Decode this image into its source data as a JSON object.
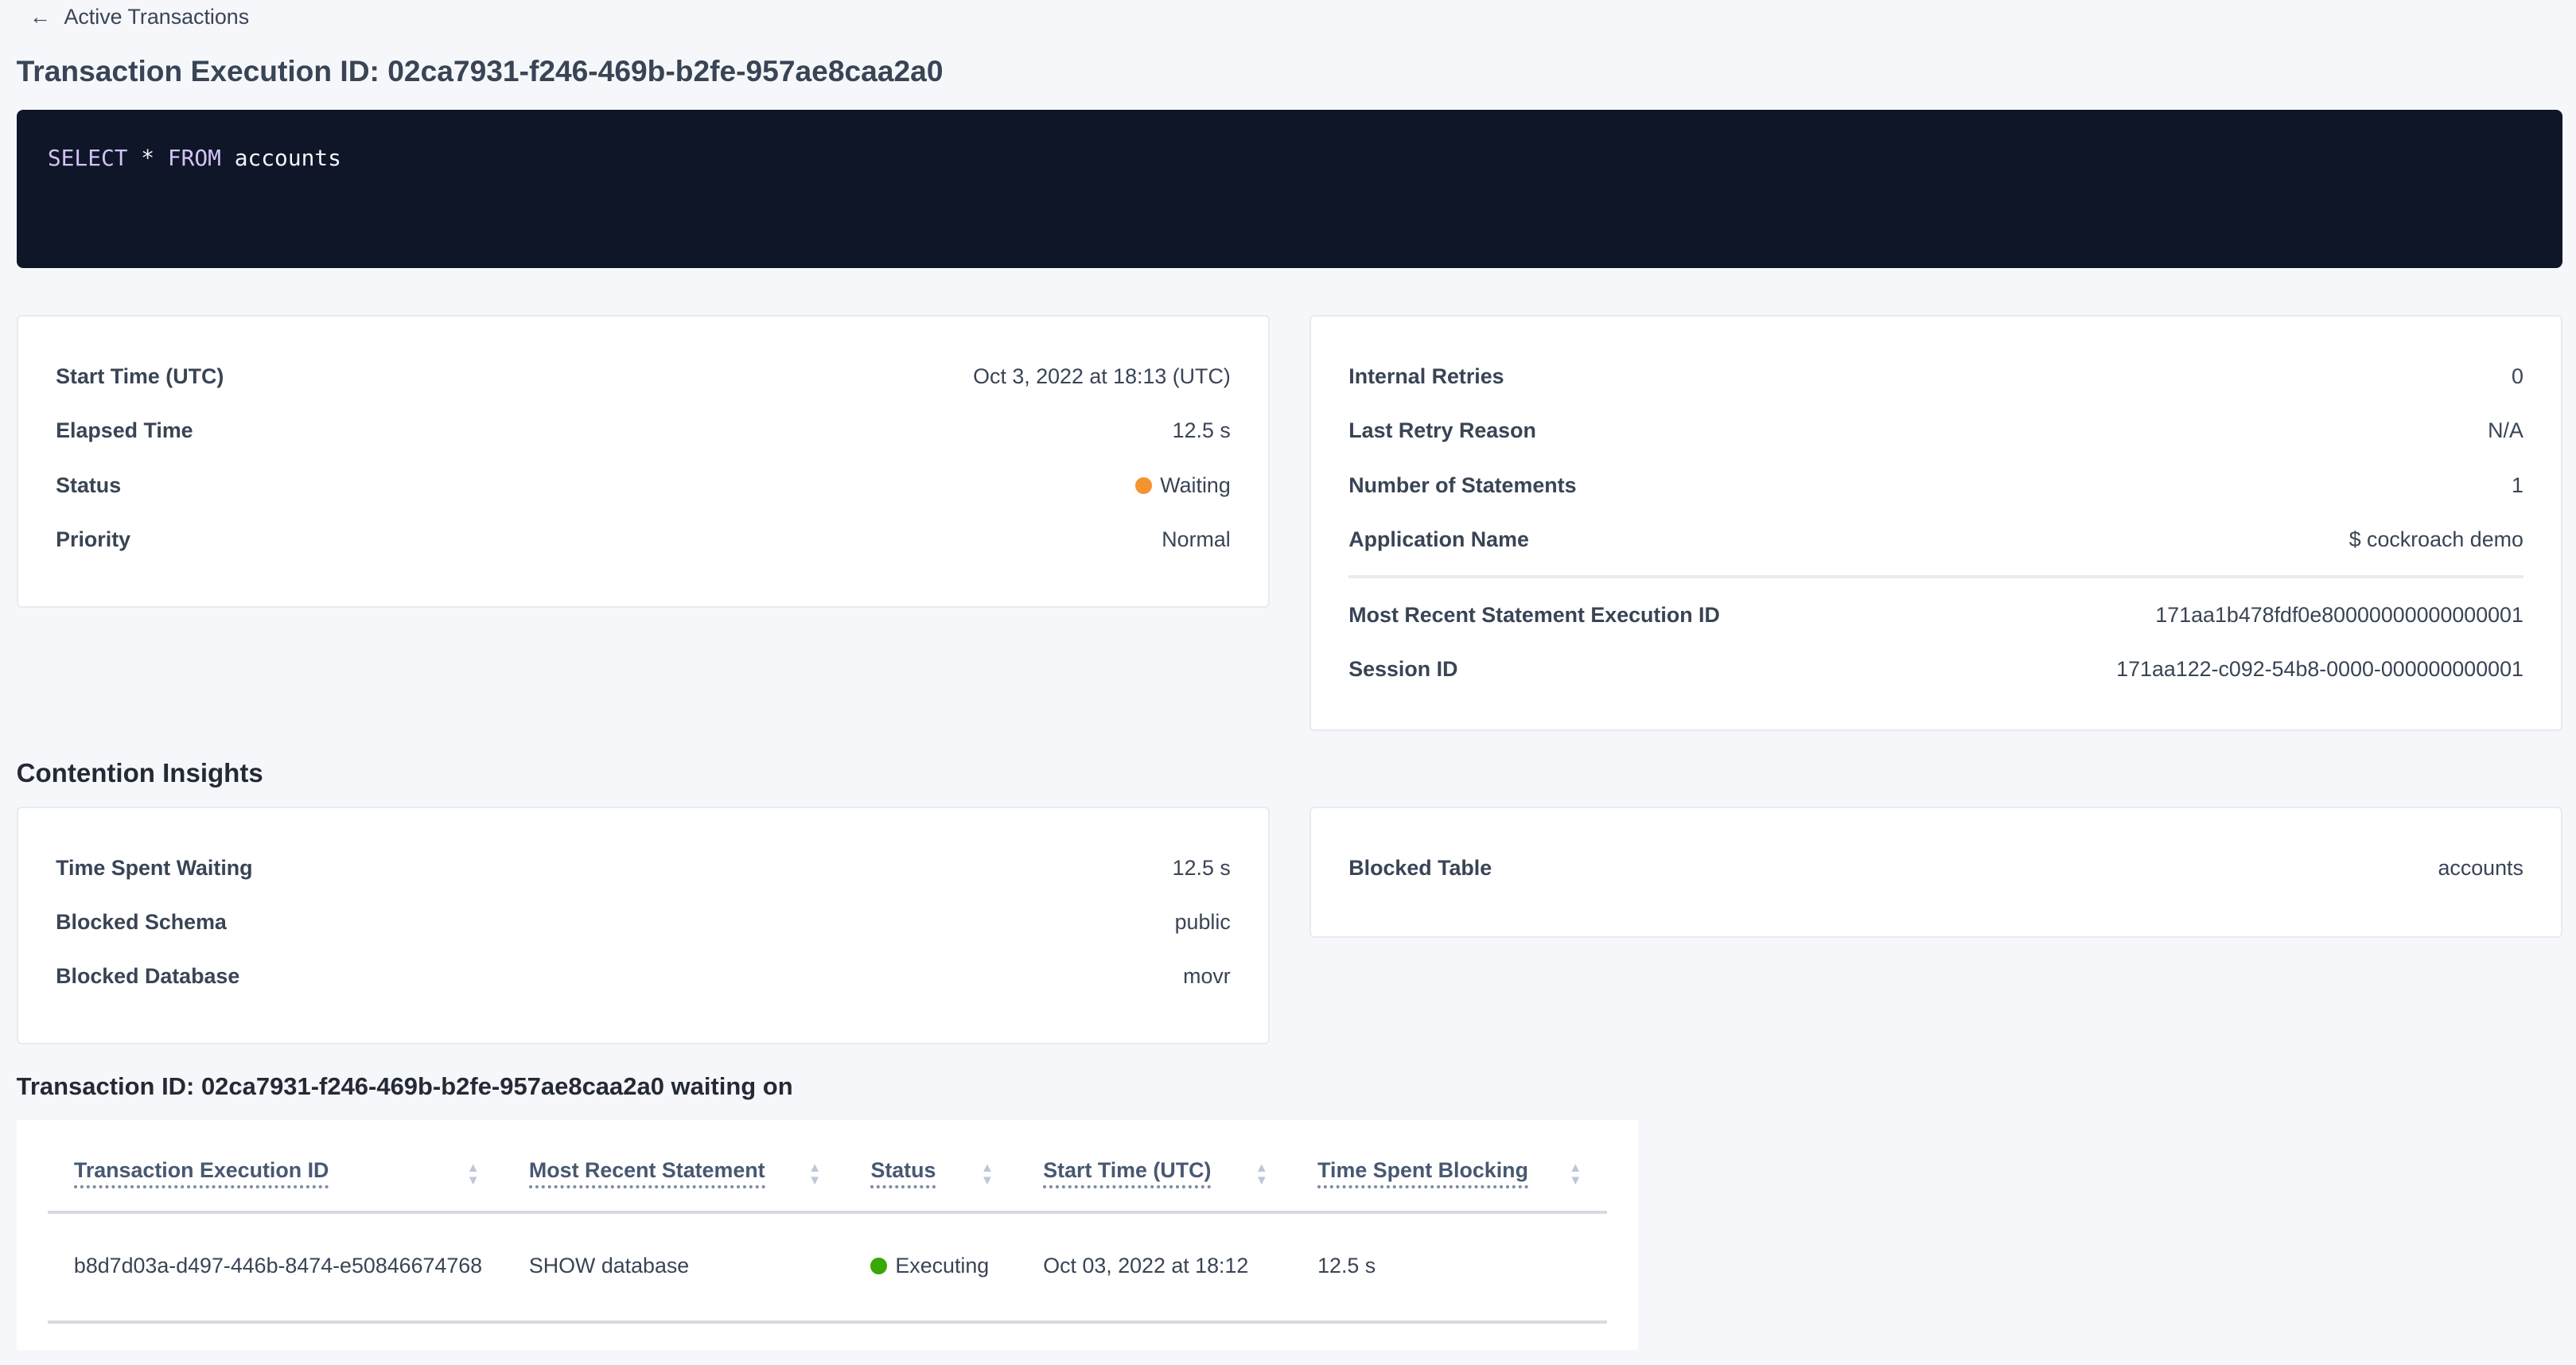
{
  "back_link": {
    "label": "Active Transactions",
    "icon": "arrow-left-icon"
  },
  "title": "Transaction Execution ID: 02ca7931-f246-469b-b2fe-957ae8caa2a0",
  "sql": {
    "kw1": "SELECT",
    "star": "*",
    "kw2": "FROM",
    "table": "accounts"
  },
  "details_left": [
    {
      "label": "Start Time (UTC)",
      "value": "Oct 3, 2022 at 18:13 (UTC)"
    },
    {
      "label": "Elapsed Time",
      "value": "12.5 s"
    },
    {
      "label": "Status",
      "value": "Waiting",
      "dot_color": "#f59331"
    },
    {
      "label": "Priority",
      "value": "Normal"
    }
  ],
  "details_right": [
    {
      "label": "Internal Retries",
      "value": "0"
    },
    {
      "label": "Last Retry Reason",
      "value": "N/A"
    },
    {
      "label": "Number of Statements",
      "value": "1"
    },
    {
      "label": "Application Name",
      "value": "$ cockroach demo"
    },
    {
      "label": "Most Recent Statement Execution ID",
      "value": "171aa1b478fdf0e80000000000000001"
    },
    {
      "label": "Session ID",
      "value": "171aa122-c092-54b8-0000-000000000001"
    }
  ],
  "contention": {
    "heading": "Contention Insights",
    "left": [
      {
        "label": "Time Spent Waiting",
        "value": "12.5 s"
      },
      {
        "label": "Blocked Schema",
        "value": "public"
      },
      {
        "label": "Blocked Database",
        "value": "movr"
      }
    ],
    "right": [
      {
        "label": "Blocked Table",
        "value": "accounts"
      }
    ]
  },
  "waiting": {
    "heading": "Transaction ID: 02ca7931-f246-469b-b2fe-957ae8caa2a0 waiting on",
    "columns": [
      "Transaction Execution ID",
      "Most Recent Statement",
      "Status",
      "Start Time (UTC)",
      "Time Spent Blocking"
    ],
    "rows": [
      {
        "id": "b8d7d03a-d497-446b-8474-e50846674768",
        "statement": "SHOW database",
        "status": "Executing",
        "status_color": "#37a806",
        "start": "Oct 03, 2022 at 18:12",
        "blocking": "12.5 s"
      }
    ]
  }
}
